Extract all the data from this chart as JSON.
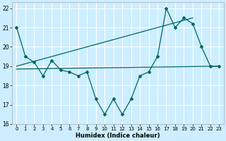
{
  "title": "",
  "xlabel": "Humidex (Indice chaleur)",
  "bg_color": "#cceeff",
  "grid_color": "#ffffff",
  "line_color": "#006666",
  "x_min": -0.5,
  "x_max": 23.5,
  "y_min": 16,
  "y_max": 22.3,
  "series1_x": [
    0,
    1,
    2,
    3,
    4,
    5,
    6,
    7,
    8,
    9,
    10,
    11,
    12,
    13,
    14,
    15,
    16,
    17,
    18,
    19,
    20,
    21,
    22,
    23
  ],
  "series1_y": [
    21.0,
    19.5,
    19.2,
    18.5,
    19.3,
    18.8,
    18.7,
    18.5,
    18.7,
    17.3,
    16.5,
    17.3,
    16.5,
    17.3,
    18.5,
    18.7,
    19.5,
    22.0,
    21.0,
    21.5,
    21.2,
    20.0,
    19.0,
    19.0
  ],
  "series2_x": [
    0,
    20
  ],
  "series2_y": [
    19.0,
    21.5
  ],
  "series3_x": [
    0,
    23
  ],
  "series3_y": [
    18.85,
    19.0
  ],
  "yticks": [
    16,
    17,
    18,
    19,
    20,
    21,
    22
  ],
  "xticks": [
    0,
    1,
    2,
    3,
    4,
    5,
    6,
    7,
    8,
    9,
    10,
    11,
    12,
    13,
    14,
    15,
    16,
    17,
    18,
    19,
    20,
    21,
    22,
    23
  ]
}
